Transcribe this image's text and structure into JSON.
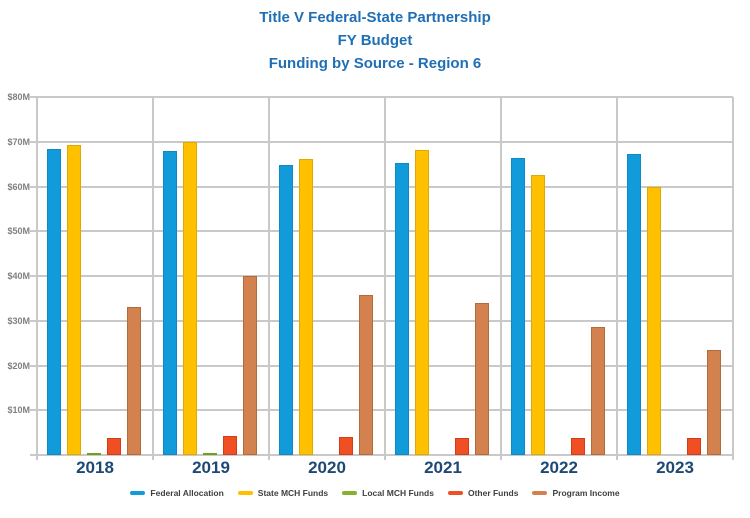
{
  "title": {
    "line1": "Title V Federal-State Partnership",
    "line2": "FY Budget",
    "line3": "Funding by Source - Region 6"
  },
  "colors": {
    "title_text": "#1F6FB5",
    "year_label_text": "#1E4875",
    "axis_tick_text": "#808080",
    "gridline": "#C9C9C9",
    "legend_text": "#3F3F3F"
  },
  "chart_data": {
    "type": "bar",
    "title": "Title V Federal-State Partnership FY Budget Funding by Source - Region 6",
    "categories": [
      "2018",
      "2019",
      "2020",
      "2021",
      "2022",
      "2023"
    ],
    "series": [
      {
        "name": "Federal Allocation",
        "color": "#129BDB",
        "border": "#0F89C4",
        "values": [
          68.3,
          68.0,
          64.8,
          65.3,
          66.3,
          67.3
        ]
      },
      {
        "name": "State MCH Funds",
        "color": "#FFC000",
        "border": "#E0A800",
        "values": [
          69.3,
          70.0,
          66.1,
          68.2,
          62.6,
          60.0
        ]
      },
      {
        "name": "Local MCH Funds",
        "color": "#86B22B",
        "border": "#6FA11F",
        "values": [
          0.3,
          0.4,
          0,
          0,
          0,
          0
        ]
      },
      {
        "name": "Other Funds",
        "color": "#F04E23",
        "border": "#D13E1A",
        "values": [
          3.9,
          4.3,
          4.0,
          3.9,
          3.9,
          3.7
        ]
      },
      {
        "name": "Program Income",
        "color": "#D3814F",
        "border": "#B26B3B",
        "values": [
          33.0,
          40.0,
          35.7,
          34.0,
          28.6,
          23.4
        ]
      }
    ],
    "ylim": [
      0,
      80
    ],
    "ytick_step": 10,
    "ytick_labels": [
      "$80M",
      "$70M",
      "$60M",
      "$50M",
      "$40M",
      "$30M",
      "$20M",
      "$10M"
    ],
    "xlabel": "",
    "ylabel": "",
    "grid": true,
    "legend_position": "bottom"
  }
}
